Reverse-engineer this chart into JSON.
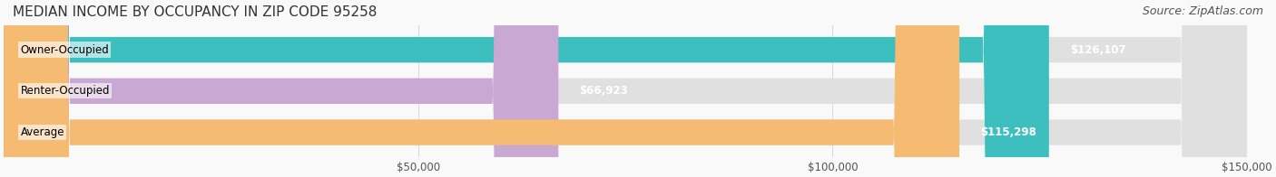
{
  "title": "MEDIAN INCOME BY OCCUPANCY IN ZIP CODE 95258",
  "source": "Source: ZipAtlas.com",
  "categories": [
    "Owner-Occupied",
    "Renter-Occupied",
    "Average"
  ],
  "values": [
    126107,
    66923,
    115298
  ],
  "labels": [
    "$126,107",
    "$66,923",
    "$115,298"
  ],
  "bar_colors": [
    "#3dbfbf",
    "#c9a8d4",
    "#f5bb72"
  ],
  "bar_edge_colors": [
    "#3dbfbf",
    "#c9a8d4",
    "#f5bb72"
  ],
  "xlim": [
    0,
    150000
  ],
  "xticks": [
    0,
    50000,
    100000,
    150000
  ],
  "xticklabels": [
    "$50,000",
    "$100,000",
    "$150,000"
  ],
  "background_color": "#f0f0f0",
  "bar_bg_color": "#e8e8e8",
  "title_fontsize": 11,
  "source_fontsize": 9,
  "label_fontsize": 8.5,
  "category_fontsize": 8.5,
  "tick_fontsize": 8.5,
  "bar_height": 0.62
}
